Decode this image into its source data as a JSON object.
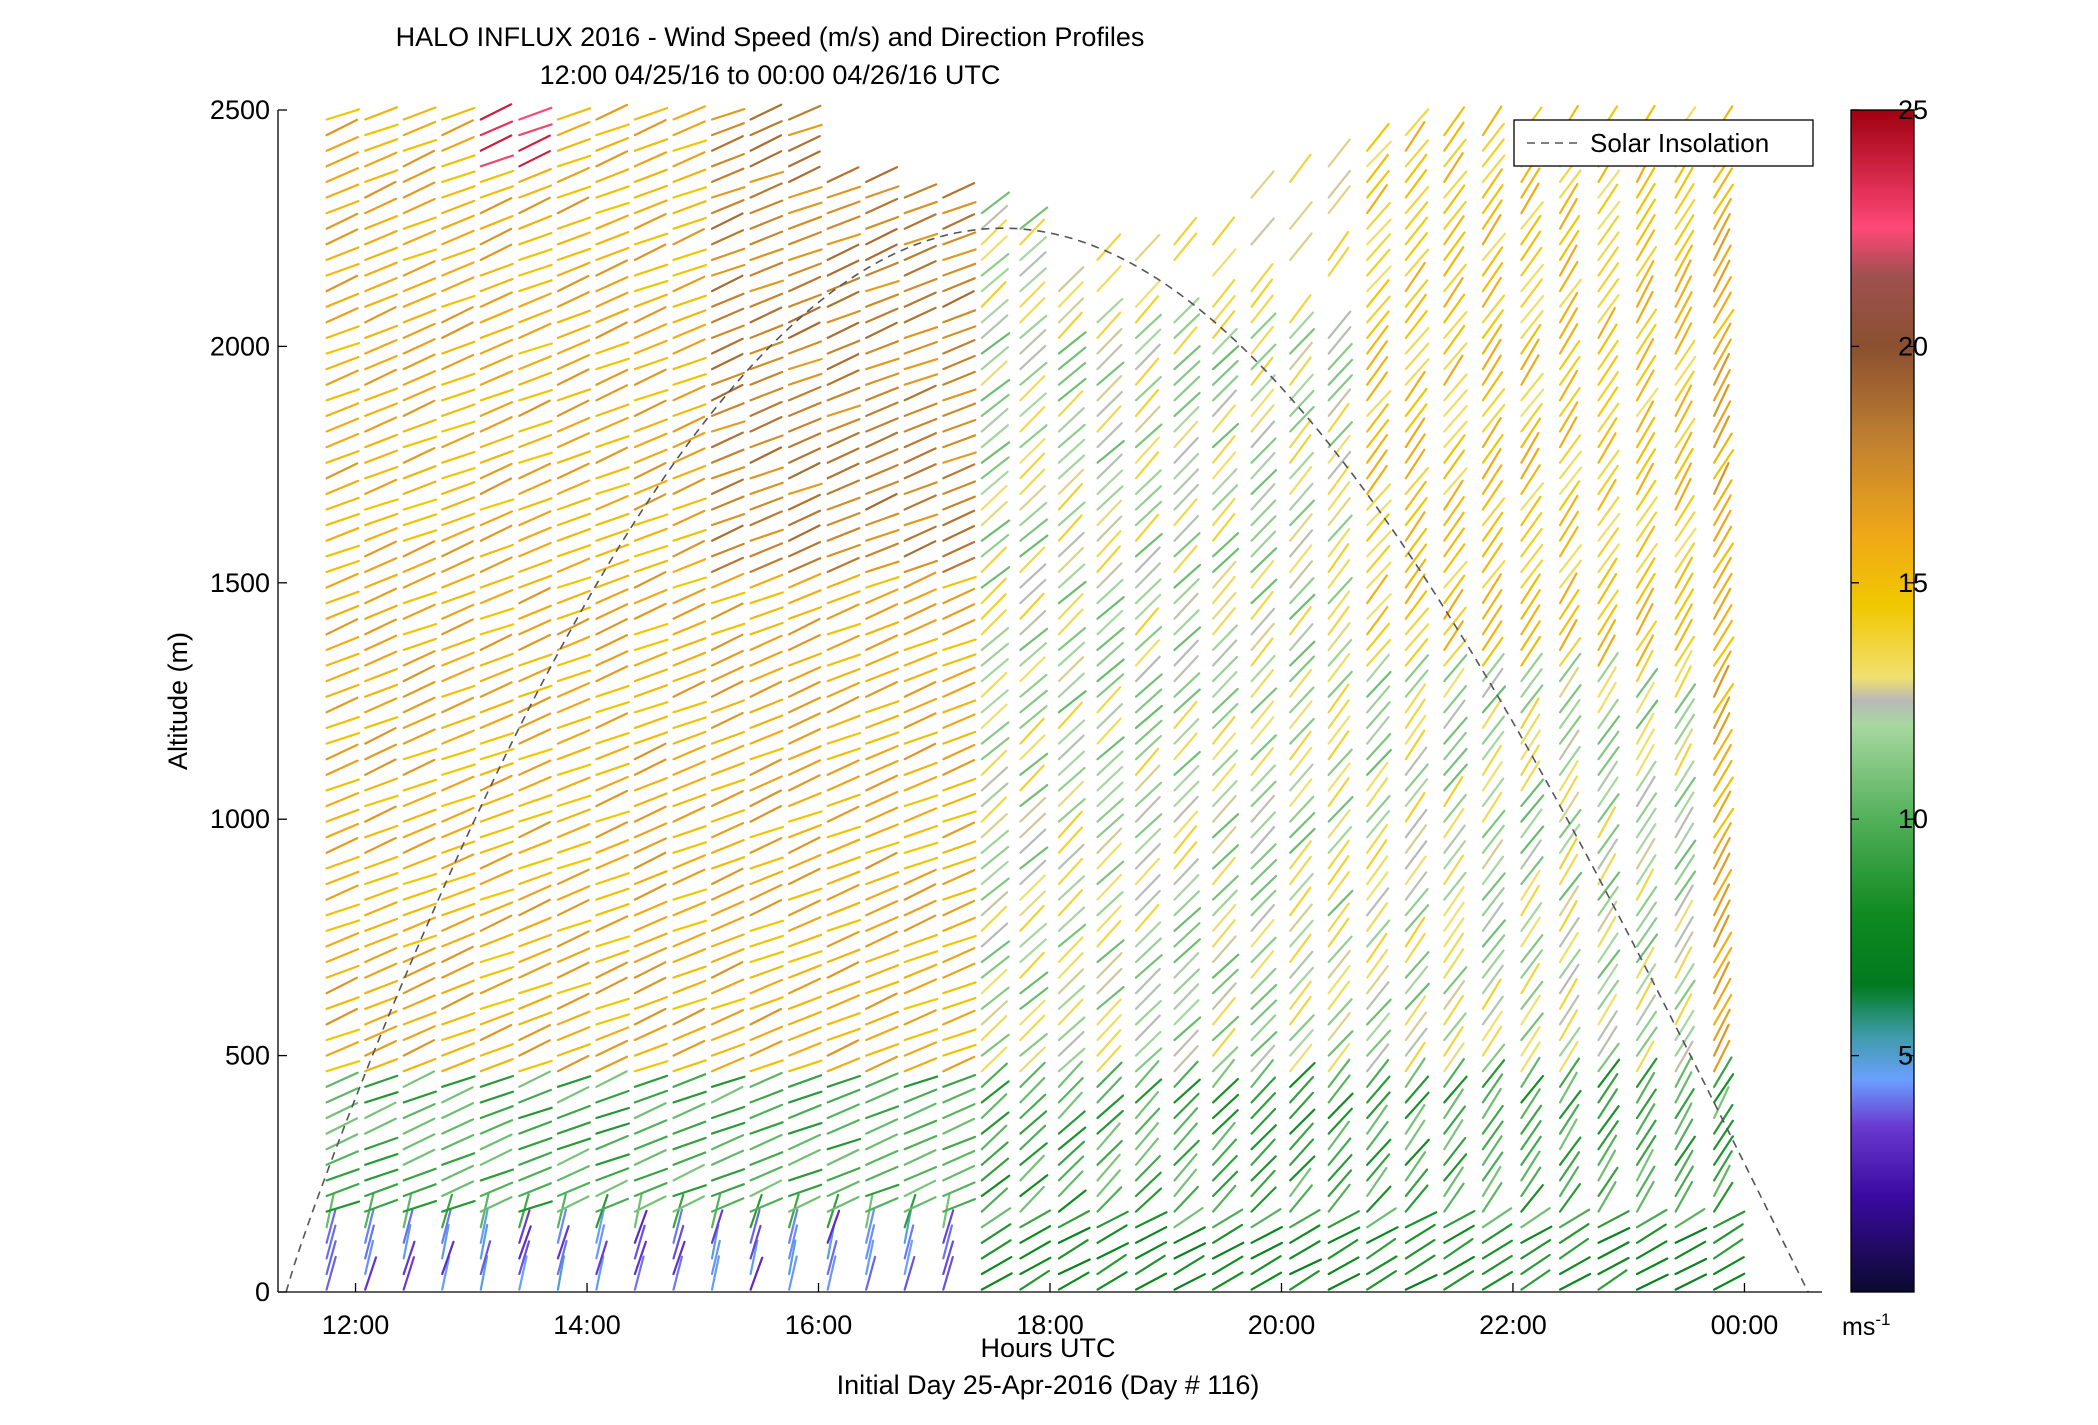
{
  "chart_data": {
    "type": "wind-barb-profile",
    "title": "HALO INFLUX 2016 - Wind Speed (m/s) and Direction Profiles",
    "subtitle": "12:00 04/25/16 to 00:00 04/26/16  UTC",
    "xlabel": "Hours UTC",
    "xlabel2": "Initial Day 25-Apr-2016 (Day # 116)",
    "ylabel": "Altitude (m)",
    "x_range_hours": [
      11.33,
      24.67
    ],
    "x_ticks": [
      {
        "hour": 12,
        "label": "12:00"
      },
      {
        "hour": 14,
        "label": "14:00"
      },
      {
        "hour": 16,
        "label": "16:00"
      },
      {
        "hour": 18,
        "label": "18:00"
      },
      {
        "hour": 20,
        "label": "20:00"
      },
      {
        "hour": 22,
        "label": "22:00"
      },
      {
        "hour": 24,
        "label": "00:00"
      }
    ],
    "y_range": [
      0,
      2500
    ],
    "y_ticks": [
      0,
      500,
      1000,
      1500,
      2000,
      2500
    ],
    "profiles": {
      "start_hour": 11.75,
      "end_hour": 23.75,
      "interval_hours": 0.333,
      "altitude_step_m": 33,
      "max_altitude_m": 2500
    },
    "legend": {
      "position": "top-right",
      "label": "Solar Insolation"
    },
    "solar_insolation": {
      "sunrise_hour": 11.4,
      "sunset_hour": 24.55,
      "peak_hour": 17.9,
      "peak_altitude_equiv_m": 2250,
      "color": "#555555"
    },
    "colorbar": {
      "min": 0,
      "max": 25,
      "ticks": [
        5,
        10,
        15,
        20,
        25
      ],
      "unit_label": "ms",
      "unit_exponent": "-1",
      "stops": [
        {
          "v": 0,
          "c": "#0a0a2e"
        },
        {
          "v": 2,
          "c": "#3a0aa0"
        },
        {
          "v": 3.5,
          "c": "#6a3ad0"
        },
        {
          "v": 4.5,
          "c": "#6aa0ff"
        },
        {
          "v": 5.5,
          "c": "#3a9aa0"
        },
        {
          "v": 6.5,
          "c": "#007a1e"
        },
        {
          "v": 8,
          "c": "#108a20"
        },
        {
          "v": 10,
          "c": "#52b05a"
        },
        {
          "v": 12,
          "c": "#a8d8a0"
        },
        {
          "v": 12.5,
          "c": "#b8b8b8"
        },
        {
          "v": 13,
          "c": "#f0e070"
        },
        {
          "v": 14.5,
          "c": "#f0c800"
        },
        {
          "v": 16,
          "c": "#f0a818"
        },
        {
          "v": 18,
          "c": "#c08030"
        },
        {
          "v": 20,
          "c": "#8a5030"
        },
        {
          "v": 21.5,
          "c": "#a05050"
        },
        {
          "v": 22.5,
          "c": "#ff4878"
        },
        {
          "v": 25,
          "c": "#a00010"
        }
      ]
    }
  }
}
